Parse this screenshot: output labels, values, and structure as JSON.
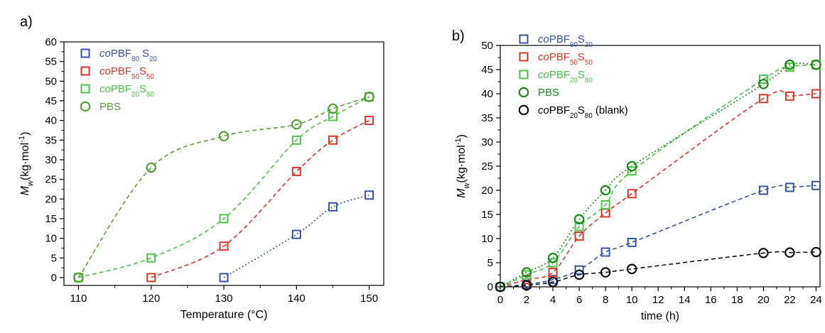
{
  "chart_data": [
    {
      "panel_label": "a)",
      "type": "scatter",
      "xlabel": "Temperature (°C)",
      "ylabel_symbol": "M",
      "ylabel_sub": "w",
      "ylabel_unit": "(kg·mol",
      "ylabel_exp": "-1",
      "ylabel_close": ")",
      "xlim": [
        108,
        152
      ],
      "ylim": [
        -2,
        60
      ],
      "xticks": [
        110,
        120,
        130,
        140,
        150
      ],
      "yticks": [
        0,
        5,
        10,
        15,
        20,
        25,
        30,
        35,
        40,
        45,
        50,
        55,
        60
      ],
      "grid": false,
      "legend_position": "top-left",
      "series": [
        {
          "name": "coPBF80S20",
          "legend_parts": [
            [
              "co",
              "it"
            ],
            [
              "PBF",
              ""
            ],
            [
              "80",
              "sub"
            ],
            [
              " S",
              ""
            ],
            [
              "20",
              "sub"
            ]
          ],
          "marker": "square",
          "color": "#3953a4",
          "line_style": "dotted",
          "x": [
            130,
            140,
            145,
            150
          ],
          "y": [
            0,
            11,
            18,
            21
          ]
        },
        {
          "name": "coPBF50S50",
          "legend_parts": [
            [
              "co",
              "it"
            ],
            [
              "PBF",
              ""
            ],
            [
              "50",
              "sub"
            ],
            [
              "S",
              ""
            ],
            [
              "50",
              "sub"
            ]
          ],
          "marker": "square",
          "color": "#d43a2a",
          "line_style": "dashed",
          "x": [
            120,
            130,
            140,
            145,
            150
          ],
          "y": [
            0,
            8,
            27,
            35,
            40
          ]
        },
        {
          "name": "coPBF20S80",
          "legend_parts": [
            [
              "co",
              "it"
            ],
            [
              "PBF",
              ""
            ],
            [
              "20",
              "sub"
            ],
            [
              "S",
              ""
            ],
            [
              "80",
              "sub"
            ]
          ],
          "marker": "square",
          "color": "#4cc24a",
          "line_style": "dashed",
          "x": [
            110,
            120,
            130,
            140,
            145,
            150
          ],
          "y": [
            0,
            5,
            15,
            35,
            41,
            46
          ]
        },
        {
          "name": "PBS",
          "legend_parts": [
            [
              "PBS",
              ""
            ]
          ],
          "marker": "circle",
          "color": "#5a9e3a",
          "line_style": "dashed",
          "x": [
            110,
            120,
            130,
            140,
            145,
            150
          ],
          "y": [
            0,
            28,
            36,
            39,
            43,
            46
          ]
        }
      ]
    },
    {
      "panel_label": "b)",
      "type": "scatter",
      "xlabel": "time (h)",
      "ylabel_symbol": "M",
      "ylabel_sub": "w",
      "ylabel_unit": "(kg·mol",
      "ylabel_exp": "-1",
      "ylabel_close": ")",
      "xlim": [
        0,
        24.3
      ],
      "ylim": [
        0,
        50
      ],
      "xticks": [
        0,
        2,
        4,
        6,
        8,
        10,
        12,
        14,
        16,
        18,
        20,
        22,
        24
      ],
      "yticks": [
        0,
        5,
        10,
        15,
        20,
        25,
        30,
        35,
        40,
        45,
        50
      ],
      "grid": false,
      "legend_position": "top-left",
      "series": [
        {
          "name": "coPBF80S20",
          "legend_parts": [
            [
              "co",
              "it"
            ],
            [
              "PBF",
              ""
            ],
            [
              "80",
              "sub"
            ],
            [
              "S",
              ""
            ],
            [
              "20",
              "sub"
            ]
          ],
          "marker": "square",
          "color": "#3953a4",
          "line_style": "dashed",
          "x": [
            0,
            2,
            4,
            6,
            8,
            10,
            20,
            22,
            24
          ],
          "y": [
            0,
            0.5,
            1.5,
            3.5,
            7.2,
            9.2,
            20,
            20.6,
            21
          ]
        },
        {
          "name": "coPBF50S50",
          "legend_parts": [
            [
              "co",
              "it"
            ],
            [
              "PBF",
              ""
            ],
            [
              "50",
              "sub"
            ],
            [
              "S",
              ""
            ],
            [
              "50",
              "sub"
            ]
          ],
          "marker": "square",
          "color": "#d43a2a",
          "line_style": "dashed",
          "x": [
            0,
            2,
            4,
            6,
            8,
            10,
            20,
            22,
            24
          ],
          "y": [
            0,
            1.5,
            3,
            10.5,
            15.3,
            19.3,
            39,
            39.5,
            40
          ]
        },
        {
          "name": "coPBF20S80",
          "legend_parts": [
            [
              "co",
              "it"
            ],
            [
              "PBF",
              ""
            ],
            [
              "20",
              "sub"
            ],
            [
              "S",
              ""
            ],
            [
              "80",
              "sub"
            ]
          ],
          "marker": "square",
          "color": "#4cc24a",
          "line_style": "dashed",
          "x": [
            0,
            2,
            4,
            6,
            8,
            10,
            20,
            22,
            24
          ],
          "y": [
            0,
            2.5,
            5,
            12.5,
            17,
            24,
            43,
            45.5,
            46
          ]
        },
        {
          "name": "PBS",
          "legend_parts": [
            [
              "PBS",
              ""
            ]
          ],
          "marker": "circle",
          "color": "#1a8a1a",
          "line_style": "dotted",
          "x": [
            0,
            2,
            4,
            6,
            8,
            10,
            20,
            22,
            24
          ],
          "y": [
            0,
            3,
            6,
            14,
            20,
            25,
            42,
            46,
            46
          ]
        },
        {
          "name": "coPBF20S80 (blank)",
          "legend_parts": [
            [
              "co",
              "it"
            ],
            [
              "PBF",
              ""
            ],
            [
              "20",
              "sub"
            ],
            [
              "S",
              ""
            ],
            [
              "80",
              "sub"
            ],
            [
              " (blank)",
              ""
            ]
          ],
          "marker": "circle",
          "color": "#111111",
          "line_style": "dashed",
          "x": [
            0,
            2,
            4,
            6,
            8,
            10,
            20,
            22,
            24
          ],
          "y": [
            0,
            0.3,
            1,
            2.5,
            3,
            3.7,
            7,
            7.1,
            7.2
          ]
        }
      ]
    }
  ]
}
